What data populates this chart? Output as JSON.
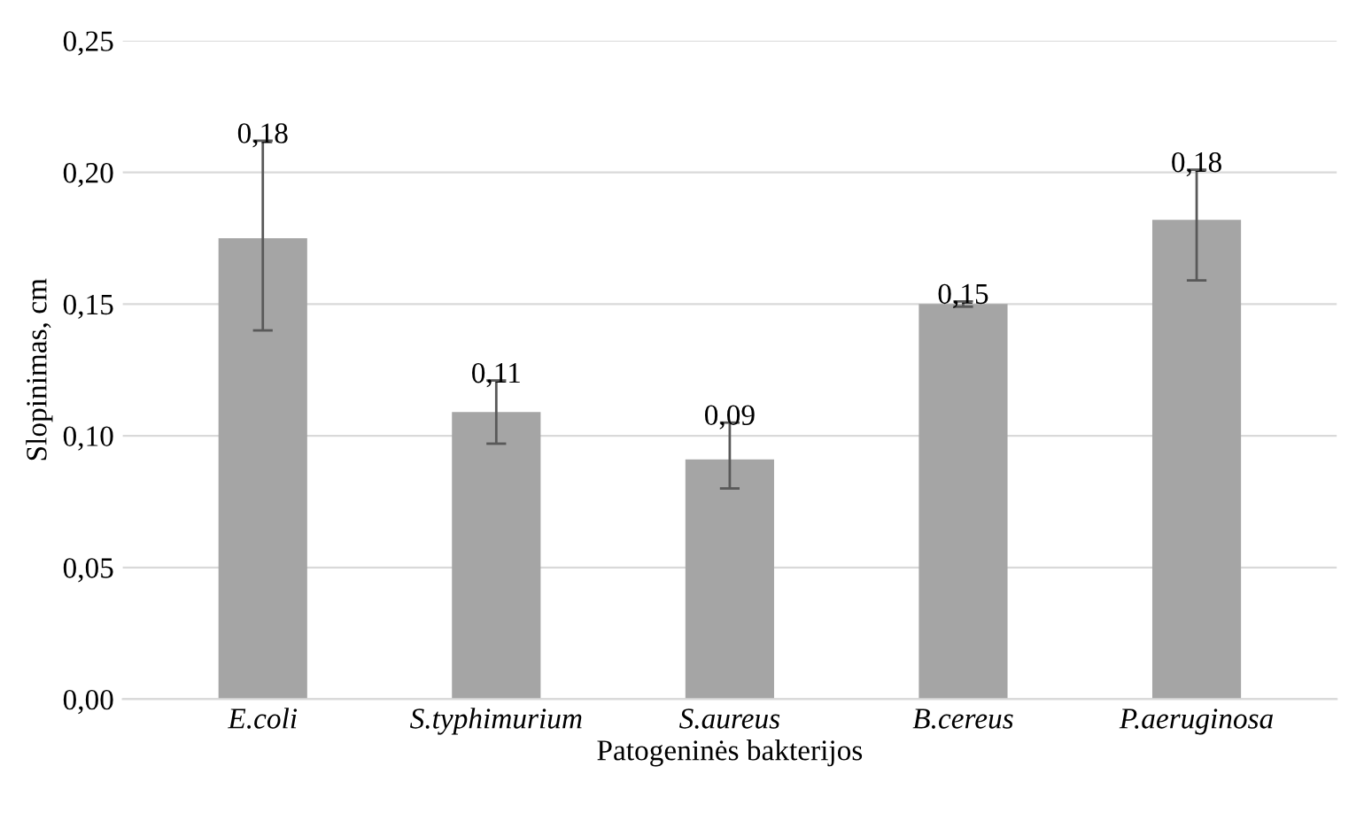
{
  "chart_data": {
    "type": "bar",
    "xlabel": "Patogeninės bakterijos",
    "ylabel": "Slopinimas, cm",
    "categories": [
      "E.coli",
      "S.typhimurium",
      "S.aureus",
      "B.cereus",
      "P.aeruginosa"
    ],
    "values": [
      0.175,
      0.109,
      0.091,
      0.15,
      0.182
    ],
    "color": "#a5a5a5",
    "errors": [
      [
        0.14,
        0.212
      ],
      [
        0.097,
        0.121
      ],
      [
        0.08,
        0.105
      ],
      [
        0.149,
        0.151
      ],
      [
        0.159,
        0.201
      ]
    ],
    "value_labels": [
      "0,18",
      "0,11",
      "0,09",
      "0,15",
      "0,18"
    ],
    "ylim": [
      0,
      0.25
    ],
    "yticks": [
      {
        "value": 0,
        "label": "0,00"
      },
      {
        "value": 0.05,
        "label": "0,05"
      },
      {
        "value": 0.1,
        "label": "0,10"
      },
      {
        "value": 0.15,
        "label": "0,15"
      },
      {
        "value": 0.2,
        "label": "0,20"
      },
      {
        "value": 0.25,
        "label": "0,25"
      }
    ],
    "grid": "y",
    "legend": false
  }
}
